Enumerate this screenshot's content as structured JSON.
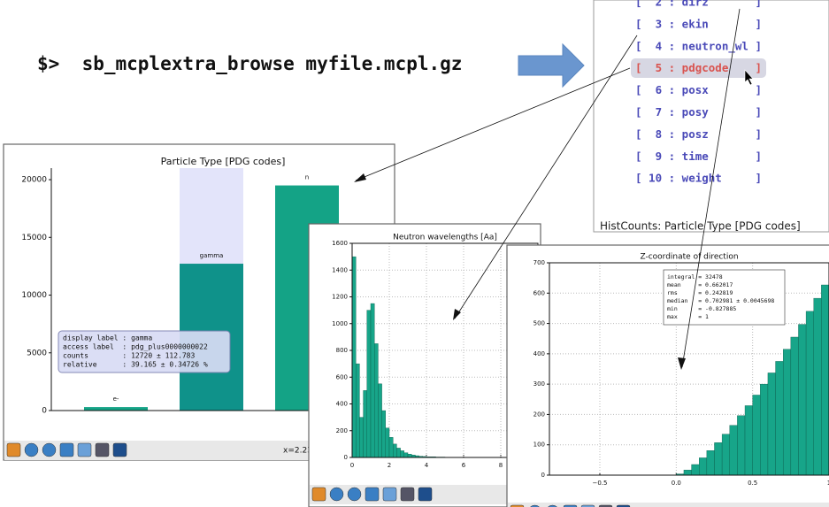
{
  "command": "$>  sb_mcplextra_browse myfile.mcpl.gz",
  "menu": {
    "items": [
      "[  2 : dirz       ]",
      "[  3 : ekin       ]",
      "[  4 : neutron_wl ]",
      "[  5 : pdgcode    ]",
      "[  6 : posx       ]",
      "[  7 : posy       ]",
      "[  8 : posz       ]",
      "[  9 : time       ]",
      "[ 10 : weight     ]"
    ],
    "caption": "HistCounts: Particle Type [PDG codes]"
  },
  "chart_data": [
    {
      "type": "bar",
      "title": "Particle Type [PDG codes]",
      "categories": [
        "e-",
        "gamma",
        "n"
      ],
      "values": [
        300,
        12720,
        19500
      ],
      "colors": [
        "#14a386",
        "#0f928a",
        "#14a386"
      ],
      "ylim": [
        0,
        21000
      ],
      "yticks": [
        0,
        5000,
        10000,
        15000,
        20000
      ],
      "tooltip": [
        "display label : gamma",
        "access label  : pdg_plus0000000022",
        "counts        : 12720 ± 112.783",
        "relative      : 39.165 ± 0.34726 %"
      ],
      "status": "x=2.23"
    },
    {
      "type": "histogram",
      "title": "Neutron wavelengths [Aa]",
      "bins": [
        0,
        0.2,
        0.4,
        0.6,
        0.8,
        1.0,
        1.2,
        1.4,
        1.6,
        1.8,
        2.0,
        2.2,
        2.4,
        2.6,
        2.8,
        3.0,
        3.2,
        3.4,
        3.6,
        3.8,
        4.0,
        4.5,
        5,
        6,
        8
      ],
      "values": [
        1500,
        700,
        300,
        500,
        1100,
        1150,
        850,
        550,
        350,
        220,
        150,
        100,
        70,
        50,
        35,
        25,
        18,
        13,
        9,
        7,
        5,
        3,
        2,
        1
      ],
      "color": "#17a589",
      "xlim": [
        0,
        10
      ],
      "ylim": [
        0,
        1600
      ],
      "xticks": [
        0,
        2,
        4,
        6,
        8
      ],
      "yticks": [
        0,
        200,
        400,
        600,
        800,
        1000,
        1200,
        1400,
        1600
      ],
      "grid": true
    },
    {
      "type": "histogram",
      "title": "Z-coordinate of direction",
      "bins": [
        0,
        0.05,
        0.1,
        0.15,
        0.2,
        0.25,
        0.3,
        0.35,
        0.4,
        0.45,
        0.5,
        0.55,
        0.6,
        0.65,
        0.7,
        0.75,
        0.8,
        0.85,
        0.9,
        0.95,
        1.0
      ],
      "values": [
        4,
        17,
        35,
        57,
        81,
        107,
        135,
        164,
        196,
        229,
        264,
        300,
        337,
        375,
        415,
        455,
        497,
        540,
        583,
        627
      ],
      "color": "#17a589",
      "xlim": [
        -0.83,
        1
      ],
      "ylim": [
        0,
        700
      ],
      "xticks": [
        {
          "value": -0.5,
          "label": "−0.5"
        },
        {
          "value": 0,
          "label": "0.0"
        },
        0.5,
        1
      ],
      "yticks": [
        0,
        100,
        200,
        300,
        400,
        500,
        600,
        700
      ],
      "grid": true,
      "stats": [
        "integral = 32478",
        "mean     = 0.662017",
        "rms      = 0.242819",
        "median   = 0.702981 ± 0.0045698",
        "min      = -0.827885",
        "max      = 1"
      ]
    }
  ]
}
